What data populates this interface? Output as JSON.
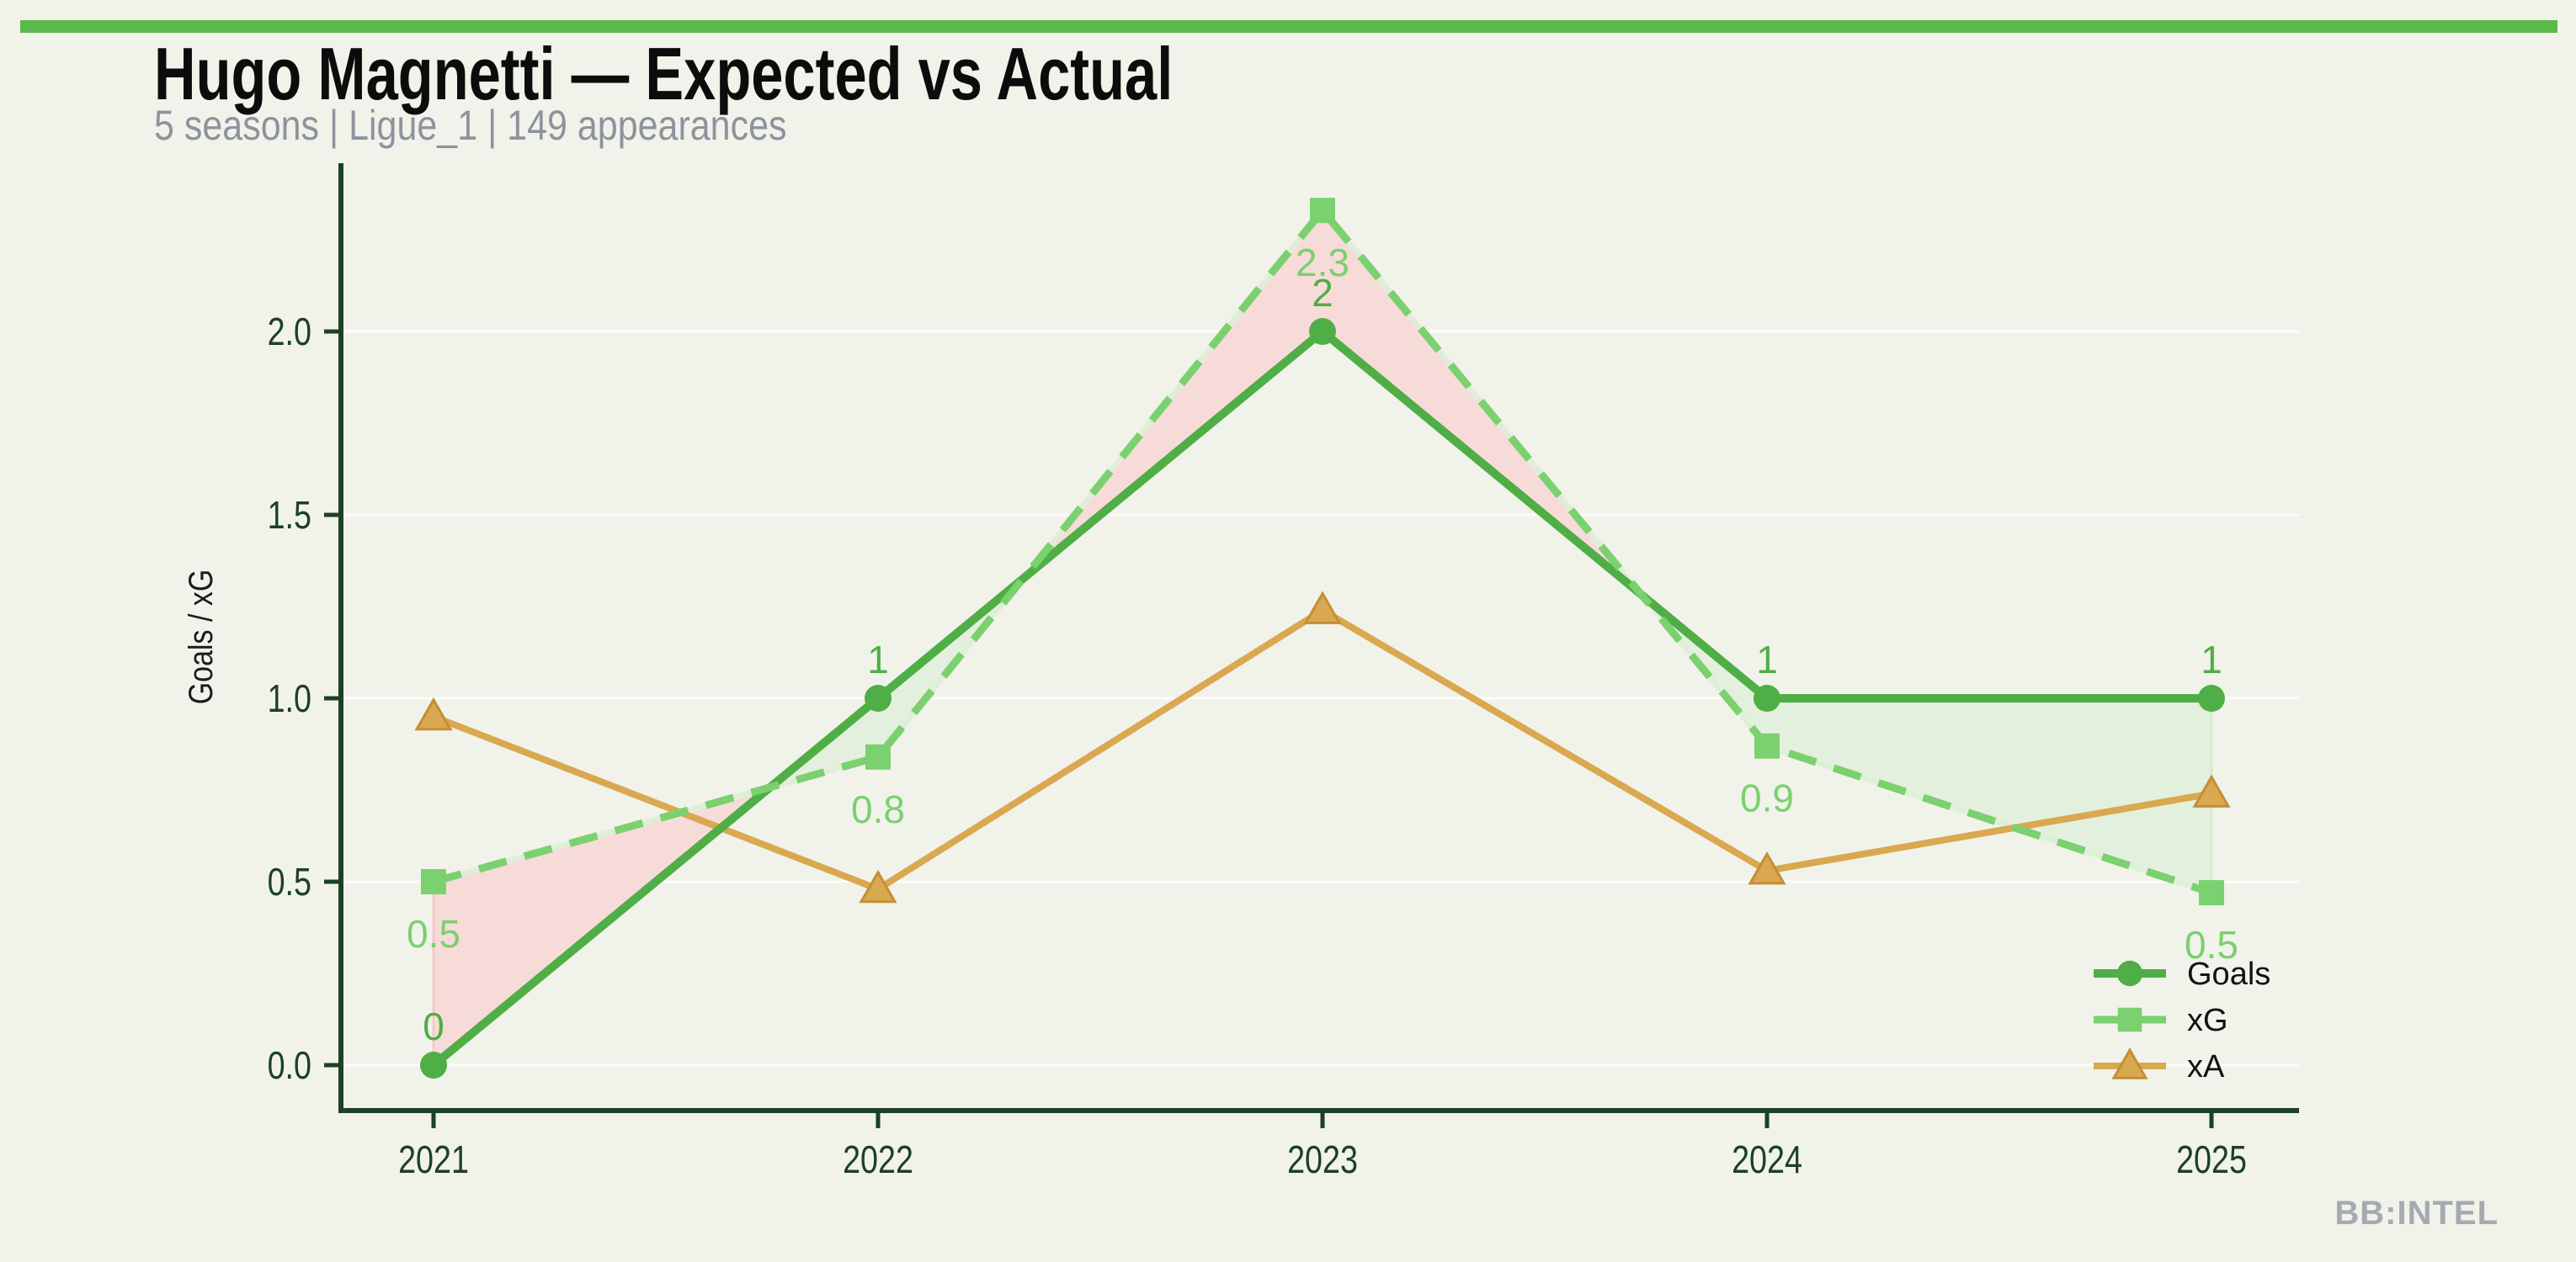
{
  "page": {
    "background": "#f1f3ea",
    "accent_bar_color": "#5bb84a",
    "watermark": "BB:INTEL"
  },
  "header": {
    "title": "Hugo Magnetti — Expected vs Actual",
    "subtitle": "5 seasons | Ligue_1 | 149 appearances"
  },
  "chart_data": {
    "type": "line",
    "x": [
      "2021",
      "2022",
      "2023",
      "2024",
      "2025"
    ],
    "series": [
      {
        "name": "Goals",
        "values": [
          0,
          1,
          2,
          1,
          1
        ],
        "point_labels": [
          "0",
          "1",
          "2",
          "1",
          "1"
        ],
        "color": "#4fae46",
        "marker": "circle",
        "line_style": "solid"
      },
      {
        "name": "xG",
        "values": [
          0.5,
          0.84,
          2.33,
          0.87,
          0.47
        ],
        "point_labels": [
          "0.5",
          "0.8",
          "2.3",
          "0.9",
          "0.5"
        ],
        "color": "#7bd06f",
        "marker": "square",
        "line_style": "dashed"
      },
      {
        "name": "xA",
        "values": [
          0.95,
          0.48,
          1.24,
          0.53,
          0.74
        ],
        "point_labels": [],
        "color": "#d9a850",
        "marker": "triangle",
        "line_style": "solid"
      }
    ],
    "xlabel": "",
    "ylabel": "Goals / xG",
    "yticks": [
      0.0,
      0.5,
      1.0,
      1.5,
      2.0
    ],
    "ytick_labels": [
      "0.0",
      "0.5",
      "1.0",
      "1.5",
      "2.0"
    ],
    "ylim": [
      0,
      2.46
    ],
    "grid": true,
    "legend": [
      "Goals",
      "xG",
      "xA"
    ],
    "legend_position": "lower right",
    "axis_color": "#1c4124",
    "fill_between": {
      "xg_over_goals_fill": "#f7dbd9",
      "xg_over_goals_edge": "#f3cbc8",
      "goals_over_xg_fill": "#e4f0de",
      "goals_over_xg_edge": "#d7ebd0"
    }
  }
}
